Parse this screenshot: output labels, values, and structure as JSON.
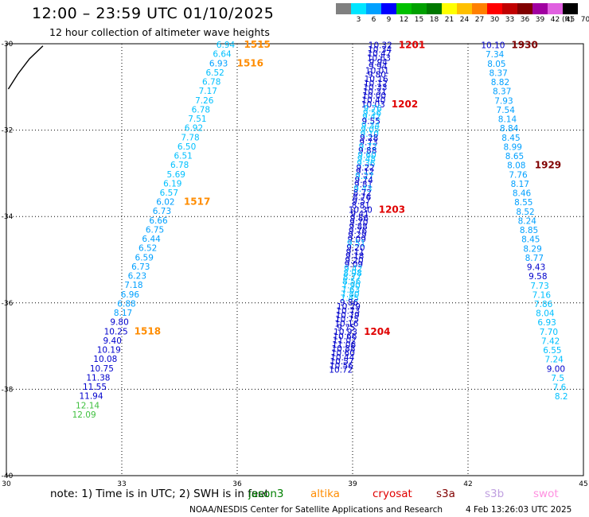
{
  "header": {
    "title": "12:00 – 23:59 UTC 01/10/2025",
    "subtitle": "12 hour collection of altimeter wave heights"
  },
  "color_scale": {
    "labels": [
      "3",
      "6",
      "9",
      "12",
      "15",
      "18",
      "21",
      "24",
      "27",
      "30",
      "33",
      "36",
      "39",
      "42",
      "45",
      "70"
    ],
    "unit": "(ft)",
    "colors": [
      "#808080",
      "#00e5ff",
      "#00a0ff",
      "#0000ff",
      "#00c000",
      "#00a000",
      "#007800",
      "#ffff00",
      "#ffc000",
      "#ff8000",
      "#ff0000",
      "#c00000",
      "#800000",
      "#a000a0",
      "#e060e0",
      "#000000"
    ]
  },
  "map": {
    "lat_labels": [
      "-30",
      "-32",
      "-34",
      "-36",
      "-38",
      "-40"
    ],
    "lon_labels": [
      "30",
      "33",
      "36",
      "39",
      "42",
      "45"
    ]
  },
  "tracks": [
    {
      "name": "track-west",
      "start_lon": 35.7,
      "start_lat": -30.02,
      "lon_step": -0.092,
      "lat_step": 0.214,
      "values": [
        "6.94",
        "6.64",
        "6.93",
        "6.52",
        "6.78",
        "7.17",
        "7.26",
        "6.78",
        "7.51",
        "6.92",
        "7.78",
        "6.50",
        "6.51",
        "6.78",
        "5.69",
        "6.19",
        "6.57",
        "6.02",
        "6.73",
        "6.66",
        "6.75",
        "6.44",
        "6.52",
        "6.59",
        "6.73",
        "6.23",
        "7.18",
        "6.96",
        "6.88",
        "8.17",
        "9.80",
        "10.25",
        "9.40",
        "10.19",
        "10.08",
        "10.75",
        "11.38",
        "11.55",
        "11.94",
        "12.14",
        "12.09"
      ],
      "colors": [
        "#00c0ff",
        "#00c0ff",
        "#00a0ff",
        "#00c0ff",
        "#00c0ff",
        "#00c0ff",
        "#00c0ff",
        "#00c0ff",
        "#00c0ff",
        "#00c0ff",
        "#00c0ff",
        "#00c0ff",
        "#00c0ff",
        "#00c0ff",
        "#00c0ff",
        "#00c0ff",
        "#00c0ff",
        "#00a0ff",
        "#00a0ff",
        "#00a0ff",
        "#00a0ff",
        "#00a0ff",
        "#00a0ff",
        "#00a0ff",
        "#00a0ff",
        "#00a0ff",
        "#00a0ff",
        "#00a0ff",
        "#00a0ff",
        "#00a0ff",
        "#0000cc",
        "#0000cc",
        "#0000cc",
        "#0000cc",
        "#0000cc",
        "#0000cc",
        "#0000cc",
        "#0000cc",
        "#0000cc",
        "#40c040",
        "#40c040"
      ],
      "time_labels": [
        {
          "text": "1515",
          "index": 0,
          "color": "#ff8c00"
        },
        {
          "text": "1516",
          "index": 2,
          "color": "#ff8c00"
        },
        {
          "text": "1517",
          "index": 17,
          "color": "#ff8c00"
        },
        {
          "text": "1518",
          "index": 31,
          "color": "#ff8c00"
        }
      ]
    },
    {
      "name": "track-center",
      "start_lon": 39.72,
      "start_lat": -30.03,
      "lon_step": -0.0133,
      "lat_step": 0.0976,
      "values": [
        "10.32",
        "10.34",
        "10.47",
        "10.63",
        "9.94",
        "9.94",
        "10.01",
        "9.80",
        "10.16",
        "10.12",
        "10.33",
        "10.31",
        "10.00",
        "10.40",
        "10.03",
        "9.76",
        "9.56",
        "9.42",
        "9.55",
        "9.34",
        "9.05",
        "9.10",
        "9.28",
        "9.73",
        "9.72",
        "9.88",
        "9.60",
        "9.48",
        "9.36",
        "9.22",
        "9.12",
        "9.27",
        "9.74",
        "9.81",
        "9.43",
        "8.72",
        "8.76",
        "9.57",
        "8.81",
        "10.30",
        "9.41",
        "9.86",
        "9.70",
        "9.88",
        "9.76",
        "9.29",
        "9.09",
        "9.51",
        "9.20",
        "9.11",
        "9.18",
        "9.20",
        "9.09",
        "9.42",
        "8.98",
        "8.77",
        "8.56",
        "7.90",
        "7.63",
        "7.80",
        "7.45",
        "9.86",
        "10.29",
        "10.73",
        "10.79",
        "10.75",
        "10.16",
        "9.75",
        "10.93",
        "10.66",
        "11.02",
        "11.06",
        "10.88",
        "10.60",
        "10.44",
        "10.57",
        "10.56",
        "10.72"
      ],
      "colors": [
        "#0000cc",
        "#0000cc",
        "#0000cc",
        "#0000cc",
        "#0000cc",
        "#0000cc",
        "#0000cc",
        "#0000cc",
        "#0000cc",
        "#0000cc",
        "#0000cc",
        "#0000cc",
        "#0000cc",
        "#0000cc",
        "#0000cc",
        "#00c0ff",
        "#00c0ff",
        "#00c0ff",
        "#0000cc",
        "#00c0ff",
        "#00c0ff",
        "#00c0ff",
        "#0000cc",
        "#0000cc",
        "#00c0ff",
        "#0000cc",
        "#00c0ff",
        "#00c0ff",
        "#00c0ff",
        "#0000cc",
        "#0000cc",
        "#00c0ff",
        "#0000cc",
        "#0000cc",
        "#00c0ff",
        "#0000cc",
        "#0000cc",
        "#0000cc",
        "#0000cc",
        "#0000cc",
        "#0000cc",
        "#0000cc",
        "#0000cc",
        "#0000cc",
        "#0000cc",
        "#0000cc",
        "#0000cc",
        "#00c0ff",
        "#0000cc",
        "#0000cc",
        "#0000cc",
        "#0000cc",
        "#0000cc",
        "#00c0ff",
        "#00c0ff",
        "#00c0ff",
        "#00c0ff",
        "#00c0ff",
        "#00c0ff",
        "#00c0ff",
        "#00c0ff",
        "#0000cc",
        "#0000cc",
        "#0000cc",
        "#0000cc",
        "#0000cc",
        "#0000cc",
        "#0000cc",
        "#0000cc",
        "#0000cc",
        "#0000cc",
        "#0000cc",
        "#0000cc",
        "#0000cc",
        "#0000cc",
        "#0000cc",
        "#0000cc",
        "#0000cc"
      ],
      "time_labels": [
        {
          "text": "1201",
          "index": 0,
          "color": "#e00000"
        },
        {
          "text": "1202",
          "index": 14,
          "color": "#e00000"
        },
        {
          "text": "1203",
          "index": 39,
          "color": "#e00000"
        },
        {
          "text": "1204",
          "index": 68,
          "color": "#e00000"
        }
      ]
    },
    {
      "name": "track-east",
      "start_lon": 42.65,
      "start_lat": -30.03,
      "lon_step": 0.0467,
      "lat_step": 0.214,
      "values": [
        "10.10",
        "7.34",
        "8.05",
        "8.37",
        "8.82",
        "8.37",
        "7.93",
        "7.54",
        "8.14",
        "8.84",
        "8.45",
        "8.99",
        "8.65",
        "8.08",
        "7.76",
        "8.17",
        "8.46",
        "8.55",
        "8.52",
        "8.24",
        "8.85",
        "8.45",
        "8.29",
        "8.77",
        "9.43",
        "9.58",
        "7.73",
        "7.16",
        "7.86",
        "8.04",
        "6.93",
        "7.70",
        "7.42",
        "6.55",
        "7.24",
        "9.00",
        "7.5",
        "7.6",
        "8.2"
      ],
      "colors": [
        "#0000cc",
        "#00a0ff",
        "#00a0ff",
        "#00a0ff",
        "#00a0ff",
        "#00a0ff",
        "#00a0ff",
        "#00a0ff",
        "#00a0ff",
        "#00a0ff",
        "#00a0ff",
        "#00a0ff",
        "#00a0ff",
        "#00a0ff",
        "#00a0ff",
        "#00a0ff",
        "#00a0ff",
        "#00a0ff",
        "#00a0ff",
        "#00a0ff",
        "#00a0ff",
        "#00a0ff",
        "#00a0ff",
        "#00a0ff",
        "#0000cc",
        "#0000cc",
        "#00c0ff",
        "#00c0ff",
        "#00c0ff",
        "#00c0ff",
        "#00c0ff",
        "#00c0ff",
        "#00c0ff",
        "#00c0ff",
        "#00c0ff",
        "#0000cc",
        "#00c0ff",
        "#00c0ff",
        "#00c0ff"
      ],
      "time_labels": [
        {
          "text": "1930",
          "index": 0,
          "color": "#800000"
        },
        {
          "text": "1929",
          "index": 13,
          "color": "#800000"
        }
      ]
    }
  ],
  "coast": [
    [
      -30.05,
      30.95
    ],
    [
      -30.35,
      30.6
    ],
    [
      -30.7,
      30.3
    ],
    [
      -31.05,
      30.05
    ]
  ],
  "footer": {
    "note": "note:  1) Time is in UTC;  2) SWH is in feet",
    "satellites": [
      {
        "name": "jason3",
        "color": "#008000"
      },
      {
        "name": "altika",
        "color": "#ff8c00"
      },
      {
        "name": "cryosat",
        "color": "#e00000"
      },
      {
        "name": "s3a",
        "color": "#800000"
      },
      {
        "name": "s3b",
        "color": "#c0a0e0"
      },
      {
        "name": "swot",
        "color": "#ff90e0"
      }
    ],
    "credit": "NOAA/NESDIS Center for Satellite Applications and Research",
    "timestamp": "4 Feb 13:26:03 UTC 2025"
  }
}
